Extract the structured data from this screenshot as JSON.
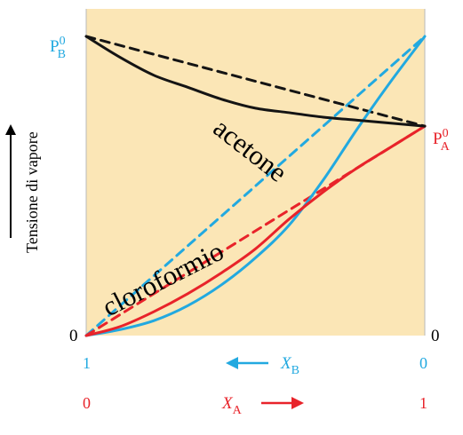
{
  "chart_data": {
    "type": "line",
    "ylabel": "Tensione di vapore",
    "xlim": [
      0,
      1
    ],
    "ylim": [
      0,
      1
    ],
    "colors": {
      "background": "#fbe6b6",
      "blue": "#22a9e0",
      "red": "#e8232a",
      "black": "#141414"
    },
    "left_labels": {
      "top_main": "P",
      "top_sup": "0",
      "top_sub": "B",
      "zero": "0"
    },
    "right_labels": {
      "top_main": "P",
      "top_sup": "0",
      "top_sub": "A",
      "zero": "0"
    },
    "axis_xb": {
      "left": "1",
      "right": "0",
      "main": "X",
      "sub": "B"
    },
    "axis_xa": {
      "left": "0",
      "right": "1",
      "main": "X",
      "sub": "A"
    },
    "annotations": [
      "acetone",
      "cloroformio"
    ],
    "series": [
      {
        "color": "#22a9e0",
        "dash": false,
        "x": [
          0,
          0.1,
          0.2,
          0.3,
          0.4,
          0.5,
          0.6,
          0.7,
          0.8,
          0.9,
          1.0
        ],
        "y": [
          0,
          0.02,
          0.05,
          0.1,
          0.17,
          0.26,
          0.37,
          0.52,
          0.69,
          0.85,
          1.0
        ]
      },
      {
        "color": "#22a9e0",
        "dash": true,
        "x": [
          0,
          1
        ],
        "y": [
          0,
          1
        ]
      },
      {
        "color": "#e8232a",
        "dash": false,
        "x": [
          0,
          0.1,
          0.2,
          0.3,
          0.4,
          0.5,
          0.6,
          0.7,
          0.8,
          0.9,
          1.0
        ],
        "y": [
          0,
          0.03,
          0.08,
          0.14,
          0.21,
          0.29,
          0.39,
          0.48,
          0.56,
          0.63,
          0.7
        ]
      },
      {
        "color": "#e8232a",
        "dash": true,
        "x": [
          0,
          1
        ],
        "y": [
          0,
          0.7
        ]
      },
      {
        "color": "#141414",
        "dash": false,
        "x": [
          0,
          0.1,
          0.2,
          0.3,
          0.4,
          0.5,
          0.6,
          0.7,
          0.8,
          0.9,
          1.0
        ],
        "y": [
          1.0,
          0.93,
          0.87,
          0.83,
          0.79,
          0.76,
          0.745,
          0.73,
          0.72,
          0.71,
          0.7
        ]
      },
      {
        "color": "#141414",
        "dash": true,
        "x": [
          0,
          1
        ],
        "y": [
          1.0,
          0.7
        ]
      }
    ]
  }
}
